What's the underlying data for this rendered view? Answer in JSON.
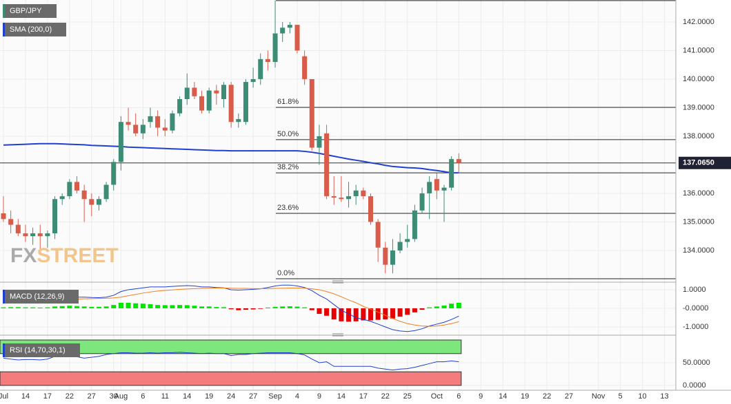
{
  "chart_data": [
    {
      "type": "candlestick",
      "title": "GBP/JPY",
      "up_color": "#3d8c76",
      "down_color": "#d95c4b",
      "open": [
        135.3,
        135.1,
        134.9,
        134.6,
        134.5,
        134.6,
        134.5,
        134.6,
        135.8,
        135.9,
        136.4,
        136.1,
        135.8,
        135.6,
        135.8,
        136.3,
        137.1,
        138.5,
        138.4,
        138.1,
        138.5,
        138.7,
        138.3,
        138.2,
        138.8,
        139.3,
        139.7,
        139.4,
        138.9,
        139.6,
        139.3,
        139.8,
        138.5,
        138.5,
        139.9,
        140.0,
        140.7,
        140.6,
        141.6,
        141.8,
        141.9,
        140.8,
        140.0,
        137.6,
        138.1,
        135.9,
        135.85,
        135.8,
        135.9,
        136.1,
        135.9,
        135.0,
        134.1,
        133.5,
        134.0,
        134.3,
        134.4,
        135.4,
        136.0,
        136.5,
        136.1,
        136.2,
        137.2
      ],
      "high": [
        135.9,
        135.4,
        135.1,
        134.9,
        134.8,
        134.9,
        134.7,
        135.9,
        136.0,
        136.5,
        136.6,
        136.3,
        136.0,
        135.9,
        136.4,
        137.2,
        138.7,
        139.0,
        138.8,
        138.6,
        139.0,
        138.9,
        138.6,
        138.9,
        139.4,
        140.2,
        139.9,
        139.6,
        139.7,
        139.8,
        139.9,
        139.9,
        138.8,
        140.0,
        140.4,
        140.9,
        141.0,
        142.75,
        142.0,
        142.0,
        141.9,
        141.0,
        140.0,
        138.4,
        138.4,
        136.6,
        136.6,
        136.4,
        136.3,
        136.2,
        136.0,
        135.1,
        134.3,
        134.4,
        134.6,
        134.9,
        135.6,
        136.2,
        136.6,
        136.7,
        136.3,
        137.3,
        137.4
      ],
      "low": [
        135.0,
        134.6,
        134.5,
        134.3,
        134.2,
        134.0,
        134.1,
        134.4,
        135.6,
        135.8,
        136.0,
        135.0,
        135.2,
        135.4,
        135.7,
        136.1,
        136.8,
        138.2,
        138.0,
        137.9,
        138.3,
        138.0,
        138.0,
        138.1,
        138.7,
        139.1,
        139.3,
        138.8,
        138.8,
        139.1,
        139.0,
        138.3,
        138.3,
        138.4,
        139.7,
        139.8,
        140.3,
        140.4,
        141.3,
        141.6,
        140.9,
        139.8,
        137.5,
        137.0,
        135.8,
        135.6,
        135.7,
        135.5,
        135.6,
        135.8,
        134.9,
        133.6,
        133.2,
        133.2,
        133.9,
        134.1,
        134.3,
        135.3,
        135.1,
        135.8,
        135.0,
        136.1,
        136.7
      ],
      "close": [
        135.1,
        134.9,
        134.6,
        134.5,
        134.6,
        134.5,
        134.6,
        135.8,
        135.9,
        136.4,
        136.1,
        135.8,
        135.6,
        135.8,
        136.3,
        137.1,
        138.5,
        138.4,
        138.1,
        138.4,
        138.7,
        138.3,
        138.2,
        138.8,
        139.3,
        139.7,
        139.4,
        138.9,
        139.6,
        139.5,
        139.8,
        138.5,
        138.6,
        139.9,
        140.0,
        140.7,
        140.6,
        141.6,
        141.8,
        141.9,
        141.0,
        140.0,
        137.6,
        138.0,
        135.9,
        135.85,
        135.8,
        135.9,
        136.1,
        135.9,
        135.0,
        134.1,
        133.5,
        134.0,
        134.3,
        134.4,
        135.4,
        136.0,
        136.4,
        136.1,
        136.2,
        137.2,
        137.065
      ],
      "sma": {
        "name": "SMA (200,0)",
        "color": "#1f3fd0",
        "values": [
          137.69,
          137.7,
          137.71,
          137.72,
          137.73,
          137.74,
          137.74,
          137.74,
          137.73,
          137.72,
          137.71,
          137.7,
          137.68,
          137.67,
          137.66,
          137.65,
          137.64,
          137.62,
          137.61,
          137.6,
          137.59,
          137.58,
          137.57,
          137.56,
          137.55,
          137.54,
          137.53,
          137.52,
          137.51,
          137.5,
          137.5,
          137.49,
          137.49,
          137.49,
          137.49,
          137.49,
          137.49,
          137.49,
          137.49,
          137.49,
          137.49,
          137.47,
          137.44,
          137.4,
          137.35,
          137.3,
          137.25,
          137.2,
          137.16,
          137.12,
          137.07,
          137.03,
          136.98,
          136.94,
          136.92,
          136.9,
          136.89,
          136.87,
          136.83,
          136.8,
          136.76,
          136.72,
          136.72
        ]
      },
      "current": {
        "value": 137.065,
        "label": "137.0650"
      },
      "fib_levels": [
        {
          "value": 142.75
        },
        {
          "value": 139.01,
          "label": "61.8%"
        },
        {
          "value": 137.88,
          "label": "50.0%"
        },
        {
          "value": 136.72,
          "label": "38.2%"
        },
        {
          "value": 135.3,
          "label": "23.6%"
        },
        {
          "value": 133.01,
          "label": "0.0%"
        }
      ],
      "watermark": [
        "FX",
        "STREET"
      ],
      "ylim": [
        132.89,
        142.77
      ],
      "yticks": [
        {
          "value": 134,
          "label": "134.0000"
        },
        {
          "value": 135,
          "label": "135.0000"
        },
        {
          "value": 136,
          "label": "136.0000"
        },
        {
          "value": 138,
          "label": "138.0000"
        },
        {
          "value": 139,
          "label": "139.0000"
        },
        {
          "value": 140,
          "label": "140.0000"
        },
        {
          "value": 141,
          "label": "141.0000"
        },
        {
          "value": 142,
          "label": "142.0000"
        }
      ],
      "xlim": [
        -0.47,
        91.55
      ],
      "xticks": [
        {
          "value": 0,
          "label": "Jul"
        },
        {
          "value": 3,
          "label": "14"
        },
        {
          "value": 6,
          "label": "17"
        },
        {
          "value": 9,
          "label": "22"
        },
        {
          "value": 12,
          "label": "27"
        },
        {
          "value": 15,
          "label": "30"
        },
        {
          "value": 16,
          "label": "Aug"
        },
        {
          "value": 19,
          "label": "6"
        },
        {
          "value": 22,
          "label": "11"
        },
        {
          "value": 25,
          "label": "14"
        },
        {
          "value": 28,
          "label": "19"
        },
        {
          "value": 31,
          "label": "24"
        },
        {
          "value": 34,
          "label": "27"
        },
        {
          "value": 37,
          "label": "Sep"
        },
        {
          "value": 40,
          "label": "4"
        },
        {
          "value": 43,
          "label": "9"
        },
        {
          "value": 46,
          "label": "14"
        },
        {
          "value": 49,
          "label": "17"
        },
        {
          "value": 52,
          "label": "22"
        },
        {
          "value": 55,
          "label": "25"
        },
        {
          "value": 59,
          "label": "Oct"
        },
        {
          "value": 62,
          "label": "6"
        },
        {
          "value": 65,
          "label": "9"
        },
        {
          "value": 68,
          "label": "14"
        },
        {
          "value": 71,
          "label": "19"
        },
        {
          "value": 74,
          "label": "22"
        },
        {
          "value": 77,
          "label": "27"
        },
        {
          "value": 81,
          "label": "Nov"
        },
        {
          "value": 84,
          "label": "5"
        },
        {
          "value": 87,
          "label": "10"
        },
        {
          "value": 90,
          "label": "13"
        }
      ]
    },
    {
      "type": "macd",
      "title": "MACD (12,26,9)",
      "up_color": "#00e600",
      "down_color": "#e60000",
      "histogram": [
        0.05,
        0.06,
        0.06,
        0.05,
        0.05,
        0.04,
        0.05,
        0.1,
        0.12,
        0.14,
        0.12,
        0.1,
        0.08,
        0.08,
        0.1,
        0.18,
        0.3,
        0.3,
        0.27,
        0.25,
        0.22,
        0.18,
        0.17,
        0.17,
        0.18,
        0.17,
        0.14,
        0.1,
        0.1,
        0.07,
        0.06,
        -0.05,
        -0.1,
        -0.08,
        -0.06,
        -0.03,
        0.04,
        0.08,
        0.1,
        0.11,
        0.09,
        0.05,
        -0.1,
        -0.3,
        -0.4,
        -0.6,
        -0.7,
        -0.72,
        -0.7,
        -0.65,
        -0.65,
        -0.62,
        -0.6,
        -0.55,
        -0.45,
        -0.35,
        -0.22,
        -0.08,
        0.05,
        0.1,
        0.15,
        0.25,
        0.3
      ],
      "series": [
        {
          "color": "#1f3fd0",
          "values": [
            0.5,
            0.5,
            0.48,
            0.45,
            0.43,
            0.42,
            0.42,
            0.48,
            0.52,
            0.58,
            0.6,
            0.6,
            0.58,
            0.57,
            0.6,
            0.7,
            0.9,
            1.0,
            1.05,
            1.1,
            1.15,
            1.15,
            1.15,
            1.18,
            1.2,
            1.22,
            1.2,
            1.15,
            1.15,
            1.12,
            1.1,
            1.0,
            0.98,
            1.0,
            1.02,
            1.05,
            1.12,
            1.2,
            1.25,
            1.25,
            1.2,
            1.12,
            0.95,
            0.7,
            0.5,
            0.2,
            -0.1,
            -0.3,
            -0.5,
            -0.6,
            -0.7,
            -0.85,
            -1.0,
            -1.15,
            -1.22,
            -1.25,
            -1.2,
            -1.1,
            -0.95,
            -0.85,
            -0.75,
            -0.6,
            -0.42
          ]
        },
        {
          "color": "#f07f1e",
          "values": [
            0.45,
            0.46,
            0.46,
            0.46,
            0.45,
            0.45,
            0.44,
            0.45,
            0.46,
            0.48,
            0.5,
            0.51,
            0.52,
            0.53,
            0.54,
            0.56,
            0.6,
            0.68,
            0.75,
            0.82,
            0.88,
            0.93,
            0.96,
            0.99,
            1.02,
            1.04,
            1.06,
            1.07,
            1.08,
            1.09,
            1.09,
            1.08,
            1.07,
            1.07,
            1.06,
            1.06,
            1.06,
            1.07,
            1.08,
            1.09,
            1.09,
            1.08,
            1.05,
            1.0,
            0.9,
            0.78,
            0.62,
            0.45,
            0.3,
            0.1,
            -0.05,
            -0.2,
            -0.38,
            -0.55,
            -0.7,
            -0.82,
            -0.9,
            -0.95,
            -0.97,
            -0.95,
            -0.9,
            -0.82,
            -0.72
          ]
        }
      ],
      "ylim": [
        -1.26,
        1.22
      ],
      "yticks": [
        {
          "value": -1,
          "label": "-1.0000"
        },
        {
          "value": 0,
          "label": "-0.0000"
        },
        {
          "value": 1,
          "label": "1.0000"
        }
      ]
    },
    {
      "type": "rsi",
      "title": "RSI (14,70,30,1)",
      "overbought": 70,
      "oversold": 30,
      "color": "#1f3fd0",
      "values": [
        60,
        58,
        56,
        57,
        57,
        56,
        58,
        64,
        66,
        66,
        63,
        60,
        62,
        64,
        68,
        70,
        72,
        72,
        71,
        71,
        72,
        71,
        72,
        72,
        73,
        72,
        71,
        70,
        71,
        70,
        70,
        66,
        68,
        68,
        70,
        71,
        72,
        72,
        72,
        72,
        70,
        67,
        58,
        50,
        52,
        42,
        42,
        42,
        42,
        42,
        42,
        38,
        36,
        34,
        36,
        37,
        40,
        44,
        48,
        52,
        52,
        54,
        52
      ],
      "ylim": [
        0,
        100
      ],
      "yticks": [
        {
          "value": 0,
          "label": "0.0000"
        },
        {
          "value": 50,
          "label": "50.0000"
        }
      ]
    }
  ]
}
